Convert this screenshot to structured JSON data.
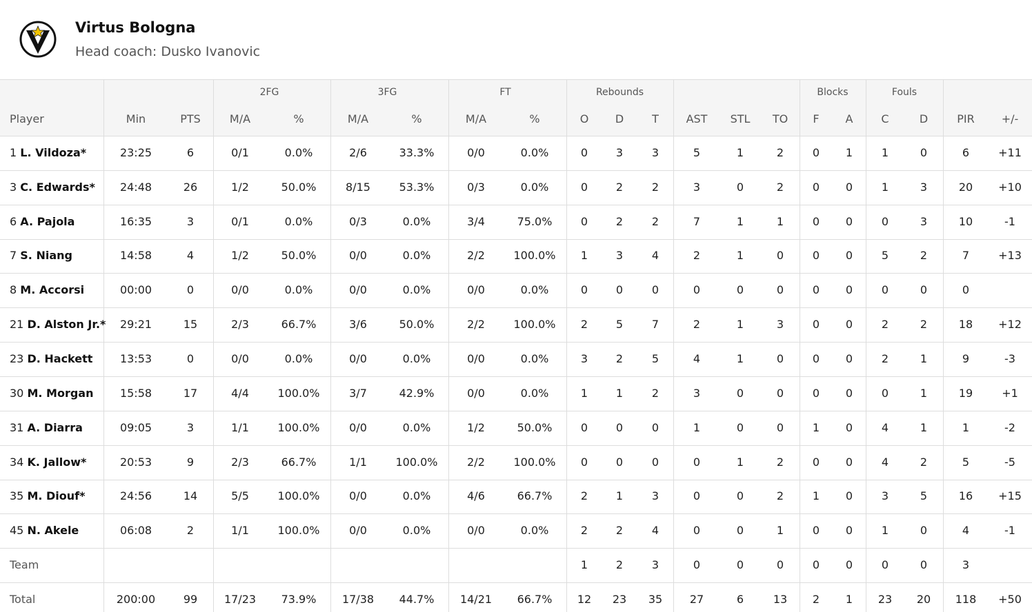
{
  "header": {
    "title": "Virtus Bologna",
    "subtitle": "Head coach: Dusko Ivanovic"
  },
  "table": {
    "player_header": "Player",
    "groups": [
      {
        "label": "2FG",
        "from": 2,
        "to": 3
      },
      {
        "label": "3FG",
        "from": 4,
        "to": 5
      },
      {
        "label": "FT",
        "from": 6,
        "to": 7
      },
      {
        "label": "Rebounds",
        "from": 8,
        "to": 10
      },
      {
        "label": "Blocks",
        "from": 14,
        "to": 15
      },
      {
        "label": "Fouls",
        "from": 16,
        "to": 17
      }
    ],
    "columns": [
      "Min",
      "PTS",
      "M/A",
      "%",
      "M/A",
      "%",
      "M/A",
      "%",
      "O",
      "D",
      "T",
      "AST",
      "STL",
      "TO",
      "F",
      "A",
      "C",
      "D",
      "PIR",
      "+/-"
    ],
    "rows": [
      {
        "number": "1",
        "name": "L. Vildoza*",
        "cells": [
          "23:25",
          "6",
          "0/1",
          "0.0%",
          "2/6",
          "33.3%",
          "0/0",
          "0.0%",
          "0",
          "3",
          "3",
          "5",
          "1",
          "2",
          "0",
          "1",
          "1",
          "0",
          "6",
          "+11"
        ]
      },
      {
        "number": "3",
        "name": "C. Edwards*",
        "cells": [
          "24:48",
          "26",
          "1/2",
          "50.0%",
          "8/15",
          "53.3%",
          "0/3",
          "0.0%",
          "0",
          "2",
          "2",
          "3",
          "0",
          "2",
          "0",
          "0",
          "1",
          "3",
          "20",
          "+10"
        ]
      },
      {
        "number": "6",
        "name": "A. Pajola",
        "cells": [
          "16:35",
          "3",
          "0/1",
          "0.0%",
          "0/3",
          "0.0%",
          "3/4",
          "75.0%",
          "0",
          "2",
          "2",
          "7",
          "1",
          "1",
          "0",
          "0",
          "0",
          "3",
          "10",
          "-1"
        ]
      },
      {
        "number": "7",
        "name": "S. Niang",
        "cells": [
          "14:58",
          "4",
          "1/2",
          "50.0%",
          "0/0",
          "0.0%",
          "2/2",
          "100.0%",
          "1",
          "3",
          "4",
          "2",
          "1",
          "0",
          "0",
          "0",
          "5",
          "2",
          "7",
          "+13"
        ]
      },
      {
        "number": "8",
        "name": "M. Accorsi",
        "cells": [
          "00:00",
          "0",
          "0/0",
          "0.0%",
          "0/0",
          "0.0%",
          "0/0",
          "0.0%",
          "0",
          "0",
          "0",
          "0",
          "0",
          "0",
          "0",
          "0",
          "0",
          "0",
          "0",
          null
        ]
      },
      {
        "number": "21",
        "name": "D. Alston Jr.*",
        "cells": [
          "29:21",
          "15",
          "2/3",
          "66.7%",
          "3/6",
          "50.0%",
          "2/2",
          "100.0%",
          "2",
          "5",
          "7",
          "2",
          "1",
          "3",
          "0",
          "0",
          "2",
          "2",
          "18",
          "+12"
        ]
      },
      {
        "number": "23",
        "name": "D. Hackett",
        "cells": [
          "13:53",
          "0",
          "0/0",
          "0.0%",
          "0/0",
          "0.0%",
          "0/0",
          "0.0%",
          "3",
          "2",
          "5",
          "4",
          "1",
          "0",
          "0",
          "0",
          "2",
          "1",
          "9",
          "-3"
        ]
      },
      {
        "number": "30",
        "name": "M. Morgan",
        "cells": [
          "15:58",
          "17",
          "4/4",
          "100.0%",
          "3/7",
          "42.9%",
          "0/0",
          "0.0%",
          "1",
          "1",
          "2",
          "3",
          "0",
          "0",
          "0",
          "0",
          "0",
          "1",
          "19",
          "+1"
        ]
      },
      {
        "number": "31",
        "name": "A. Diarra",
        "cells": [
          "09:05",
          "3",
          "1/1",
          "100.0%",
          "0/0",
          "0.0%",
          "1/2",
          "50.0%",
          "0",
          "0",
          "0",
          "1",
          "0",
          "0",
          "1",
          "0",
          "4",
          "1",
          "1",
          "-2"
        ]
      },
      {
        "number": "34",
        "name": "K. Jallow*",
        "cells": [
          "20:53",
          "9",
          "2/3",
          "66.7%",
          "1/1",
          "100.0%",
          "2/2",
          "100.0%",
          "0",
          "0",
          "0",
          "0",
          "1",
          "2",
          "0",
          "0",
          "4",
          "2",
          "5",
          "-5"
        ]
      },
      {
        "number": "35",
        "name": "M. Diouf*",
        "cells": [
          "24:56",
          "14",
          "5/5",
          "100.0%",
          "0/0",
          "0.0%",
          "4/6",
          "66.7%",
          "2",
          "1",
          "3",
          "0",
          "0",
          "2",
          "1",
          "0",
          "3",
          "5",
          "16",
          "+15"
        ]
      },
      {
        "number": "45",
        "name": "N. Akele",
        "cells": [
          "06:08",
          "2",
          "1/1",
          "100.0%",
          "0/0",
          "0.0%",
          "0/0",
          "0.0%",
          "2",
          "2",
          "4",
          "0",
          "0",
          "1",
          "0",
          "0",
          "1",
          "0",
          "4",
          "-1"
        ]
      },
      {
        "label": "Team",
        "cells": [
          null,
          null,
          null,
          null,
          null,
          null,
          null,
          null,
          "1",
          "2",
          "3",
          "0",
          "0",
          "0",
          "0",
          "0",
          "0",
          "0",
          "3",
          null
        ]
      },
      {
        "label": "Total",
        "cells": [
          "200:00",
          "99",
          "17/23",
          "73.9%",
          "17/38",
          "44.7%",
          "14/21",
          "66.7%",
          "12",
          "23",
          "35",
          "27",
          "6",
          "13",
          "2",
          "1",
          "23",
          "20",
          "118",
          "+50"
        ]
      }
    ]
  }
}
